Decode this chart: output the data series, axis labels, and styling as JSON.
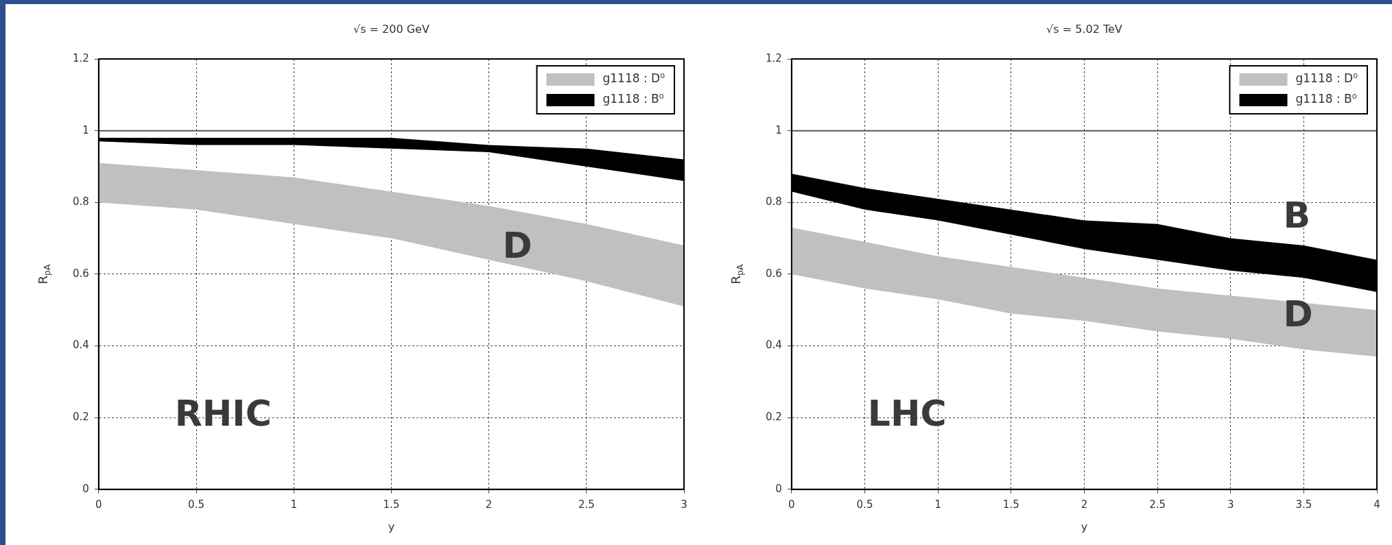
{
  "chart_data": [
    {
      "type": "line",
      "title": "√s = 200 GeV",
      "xlabel": "y",
      "ylabel": "R$_{pA}$",
      "x": [
        0,
        0.5,
        1,
        1.5,
        2,
        2.5,
        3
      ],
      "xlim": [
        0,
        3
      ],
      "xticks": [
        0,
        0.5,
        1,
        1.5,
        2,
        2.5,
        3
      ],
      "ylim": [
        0,
        1.2
      ],
      "yticks": [
        0,
        0.2,
        0.4,
        0.6,
        0.8,
        1,
        1.2
      ],
      "grid": true,
      "legend": "top right",
      "series": [
        {
          "name": "g1118 : D⁰",
          "color": "#c0c0c0",
          "values": [
            null,
            null,
            null,
            null,
            null,
            null,
            null
          ],
          "lower": [
            0.8,
            0.78,
            0.74,
            0.7,
            0.64,
            0.58,
            0.51
          ],
          "upper": [
            0.91,
            0.89,
            0.87,
            0.83,
            0.79,
            0.74,
            0.68
          ]
        },
        {
          "name": "g1118 : B⁰",
          "color": "#000000",
          "values": [
            null,
            null,
            null,
            null,
            null,
            null,
            null
          ],
          "lower": [
            0.97,
            0.96,
            0.96,
            0.95,
            0.94,
            0.9,
            0.86
          ],
          "upper": [
            0.98,
            0.98,
            0.98,
            0.98,
            0.96,
            0.95,
            0.92
          ]
        }
      ],
      "ref_lines": [
        {
          "axis": "y",
          "value": 1,
          "color": "#555555"
        }
      ],
      "annotations": [
        "D",
        "RHIC"
      ]
    },
    {
      "type": "line",
      "title": "√s = 5.02 TeV",
      "xlabel": "y",
      "ylabel": "R$_{pA}$",
      "x": [
        0,
        0.5,
        1,
        1.5,
        2,
        2.5,
        3,
        3.5,
        4
      ],
      "xlim": [
        0,
        4
      ],
      "xticks": [
        0,
        0.5,
        1,
        1.5,
        2,
        2.5,
        3,
        3.5,
        4
      ],
      "ylim": [
        0,
        1.2
      ],
      "yticks": [
        0,
        0.2,
        0.4,
        0.6,
        0.8,
        1,
        1.2
      ],
      "grid": true,
      "legend": "top right",
      "series": [
        {
          "name": "g1118 : D⁰",
          "color": "#c0c0c0",
          "values": [
            null,
            null,
            null,
            null,
            null,
            null,
            null,
            null,
            null
          ],
          "lower": [
            0.6,
            0.56,
            0.53,
            0.49,
            0.47,
            0.44,
            0.42,
            0.39,
            0.37
          ],
          "upper": [
            0.73,
            0.69,
            0.65,
            0.62,
            0.59,
            0.56,
            0.54,
            0.52,
            0.5
          ]
        },
        {
          "name": "g1118 : B⁰",
          "color": "#000000",
          "values": [
            null,
            null,
            null,
            null,
            null,
            null,
            null,
            null,
            null
          ],
          "lower": [
            0.83,
            0.78,
            0.75,
            0.71,
            0.67,
            0.64,
            0.61,
            0.59,
            0.55
          ],
          "upper": [
            0.88,
            0.84,
            0.81,
            0.78,
            0.75,
            0.74,
            0.7,
            0.68,
            0.64
          ]
        }
      ],
      "ref_lines": [
        {
          "axis": "y",
          "value": 1,
          "color": "#555555"
        }
      ],
      "annotations": [
        "B",
        "D",
        "LHC"
      ]
    }
  ]
}
